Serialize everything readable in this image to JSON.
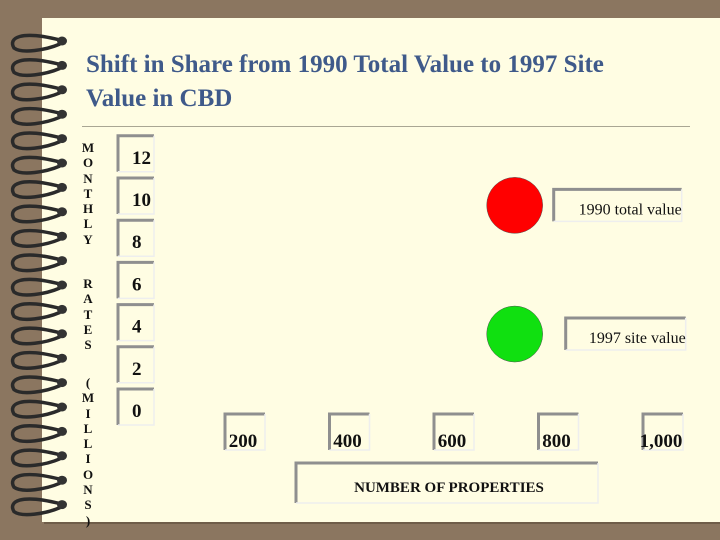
{
  "slide": {
    "title_line1": "Shift in Share from 1990 Total Value to 1997 Site",
    "title_line2": "Value in CBD"
  },
  "chart_data": {
    "type": "scatter",
    "title": "Shift in Share from 1990 Total Value to 1997 Site Value in CBD",
    "xlabel": "NUMBER OF PROPERTIES",
    "ylabel_parts": [
      "MONTHLY",
      "RATES",
      "(MILLIONS)"
    ],
    "x_ticks": [
      "200",
      "400",
      "600",
      "800",
      "1,000"
    ],
    "x_tick_values": [
      200,
      400,
      600,
      800,
      1000
    ],
    "y_ticks": [
      "12",
      "10",
      "8",
      "6",
      "4",
      "2",
      "0"
    ],
    "y_tick_values": [
      12,
      10,
      8,
      6,
      4,
      2,
      0
    ],
    "xlim": [
      200,
      1000
    ],
    "ylim": [
      0,
      12
    ],
    "series": [
      {
        "name": "1990 total value",
        "color": "#ff0000",
        "x": 720,
        "y": 9.7
      },
      {
        "name": "1997 site value",
        "color": "#10e010",
        "x": 720,
        "y": 3.6
      }
    ],
    "grid": false,
    "legend": "labels beside points"
  }
}
